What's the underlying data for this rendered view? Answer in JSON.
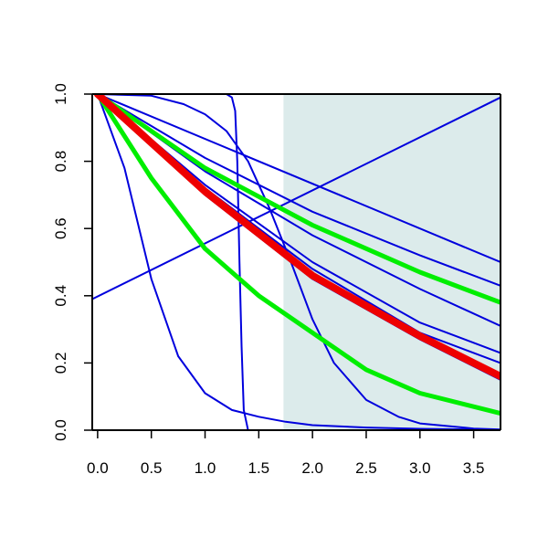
{
  "chart_data": {
    "type": "line",
    "title": "",
    "xlabel": "",
    "ylabel": "",
    "xlim": [
      -0.05,
      3.75
    ],
    "ylim": [
      0.0,
      1.0
    ],
    "x_ticks": [
      0.0,
      0.5,
      1.0,
      1.5,
      2.0,
      2.5,
      3.0,
      3.5
    ],
    "x_tick_labels": [
      "0.0",
      "0.5",
      "1.0",
      "1.5",
      "2.0",
      "2.5",
      "3.0",
      "3.5"
    ],
    "y_ticks": [
      0.0,
      0.2,
      0.4,
      0.6,
      0.8,
      1.0
    ],
    "y_tick_labels": [
      "0.0",
      "0.2",
      "0.4",
      "0.6",
      "0.8",
      "1.0"
    ],
    "shaded_region": {
      "x_from": 1.73,
      "x_to": 3.75,
      "color": "#dcebeb"
    },
    "colors": {
      "blue": "#0000dd",
      "green": "#00ee00",
      "red": "#ee0000"
    },
    "series": [
      {
        "color": "blue",
        "width": 2,
        "x": [
          0.0,
          0.25,
          0.5,
          0.75,
          1.0,
          1.25,
          1.5,
          1.75,
          2.0,
          2.5,
          3.0,
          3.5,
          3.75
        ],
        "y": [
          1.0,
          0.78,
          0.45,
          0.22,
          0.11,
          0.06,
          0.04,
          0.025,
          0.015,
          0.008,
          0.004,
          0.002,
          0.001
        ]
      },
      {
        "color": "blue",
        "width": 2,
        "x": [
          0.0,
          0.5,
          1.0,
          1.2,
          1.25,
          1.28,
          1.3,
          1.32,
          1.34,
          1.36,
          1.4,
          1.5,
          3.75
        ],
        "y": [
          1.0,
          1.0,
          1.0,
          1.0,
          0.99,
          0.95,
          0.8,
          0.5,
          0.25,
          0.06,
          0.0,
          0.0,
          0.0
        ]
      },
      {
        "color": "blue",
        "width": 2,
        "x": [
          0.0,
          0.5,
          0.8,
          1.0,
          1.2,
          1.4,
          1.6,
          1.8,
          2.0,
          2.2,
          2.5,
          2.8,
          3.0,
          3.5,
          3.75
        ],
        "y": [
          1.0,
          0.995,
          0.97,
          0.94,
          0.89,
          0.8,
          0.66,
          0.5,
          0.33,
          0.2,
          0.09,
          0.04,
          0.02,
          0.005,
          0.002
        ]
      },
      {
        "color": "blue",
        "width": 2,
        "x": [
          -0.05,
          3.75
        ],
        "y": [
          0.39,
          0.99
        ]
      },
      {
        "color": "blue",
        "width": 2,
        "x": [
          0.0,
          3.75
        ],
        "y": [
          1.0,
          0.5
        ]
      },
      {
        "color": "blue",
        "width": 2,
        "x": [
          0.0,
          1.0,
          2.0,
          3.0,
          3.75
        ],
        "y": [
          1.0,
          0.81,
          0.65,
          0.52,
          0.43
        ]
      },
      {
        "color": "blue",
        "width": 2,
        "x": [
          0.0,
          1.0,
          2.0,
          3.0,
          3.75
        ],
        "y": [
          1.0,
          0.77,
          0.58,
          0.42,
          0.31
        ]
      },
      {
        "color": "blue",
        "width": 2,
        "x": [
          0.0,
          1.0,
          2.0,
          3.0,
          3.75
        ],
        "y": [
          1.0,
          0.73,
          0.5,
          0.32,
          0.23
        ]
      },
      {
        "color": "blue",
        "width": 2,
        "x": [
          0.0,
          1.0,
          2.0,
          3.0,
          3.75
        ],
        "y": [
          1.0,
          0.72,
          0.48,
          0.29,
          0.2
        ]
      },
      {
        "color": "blue",
        "width": 2,
        "x": [
          0.0,
          1.0,
          2.0,
          3.0,
          3.75
        ],
        "y": [
          1.0,
          0.7,
          0.45,
          0.27,
          0.15
        ]
      },
      {
        "color": "green",
        "width": 5,
        "x": [
          0.0,
          1.0,
          2.0,
          3.0,
          3.75
        ],
        "y": [
          1.0,
          0.78,
          0.61,
          0.47,
          0.38
        ]
      },
      {
        "color": "green",
        "width": 5,
        "x": [
          0.0,
          0.5,
          1.0,
          1.5,
          2.0,
          2.5,
          3.0,
          3.75
        ],
        "y": [
          1.0,
          0.75,
          0.54,
          0.4,
          0.29,
          0.18,
          0.11,
          0.05
        ]
      },
      {
        "color": "red",
        "width": 8,
        "x": [
          0.0,
          1.0,
          2.0,
          3.0,
          3.75
        ],
        "y": [
          1.0,
          0.71,
          0.46,
          0.28,
          0.16
        ]
      }
    ]
  }
}
